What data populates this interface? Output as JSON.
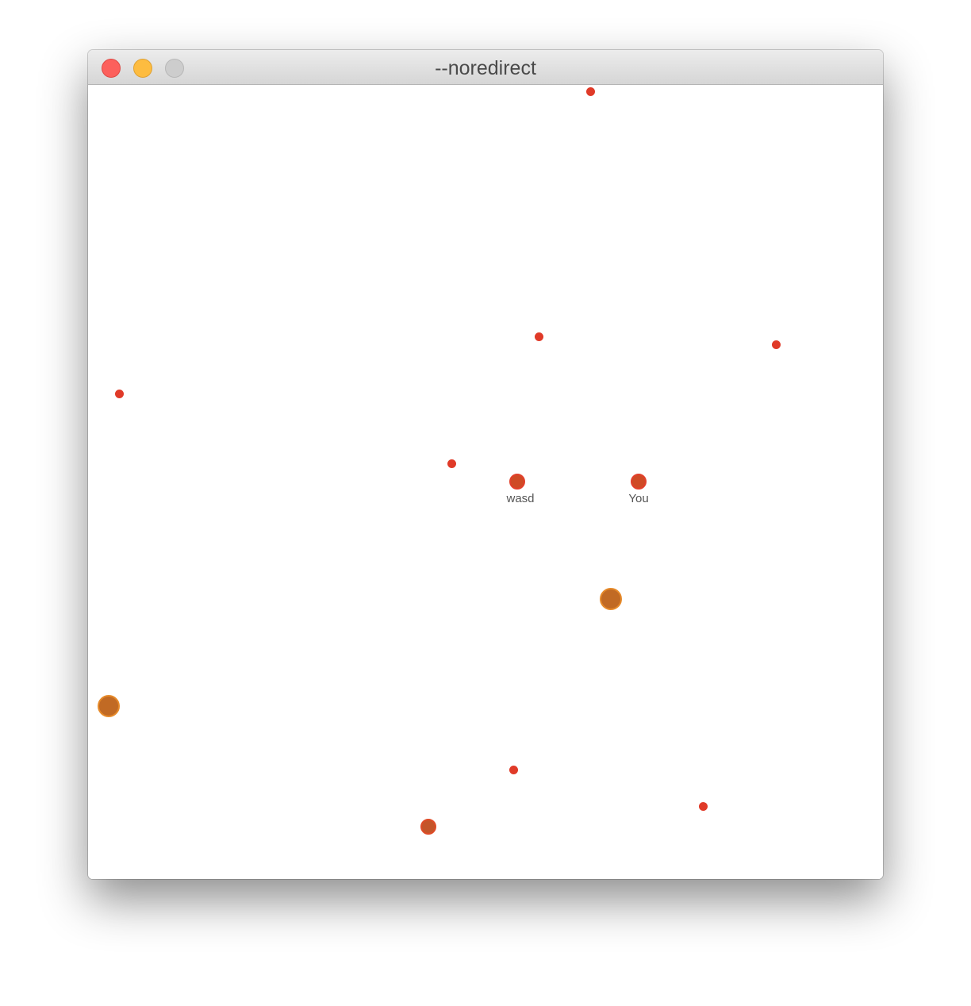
{
  "window": {
    "title": "--noredirect"
  },
  "game": {
    "players": [
      {
        "name": "wasd",
        "color": "#cf4a25"
      },
      {
        "name": "You",
        "color": "#cf4a25"
      }
    ],
    "colors": {
      "food": "#e03a28",
      "virus": "#c16a24",
      "virus_border": "#e68a2a",
      "background": "#ffffff"
    }
  }
}
